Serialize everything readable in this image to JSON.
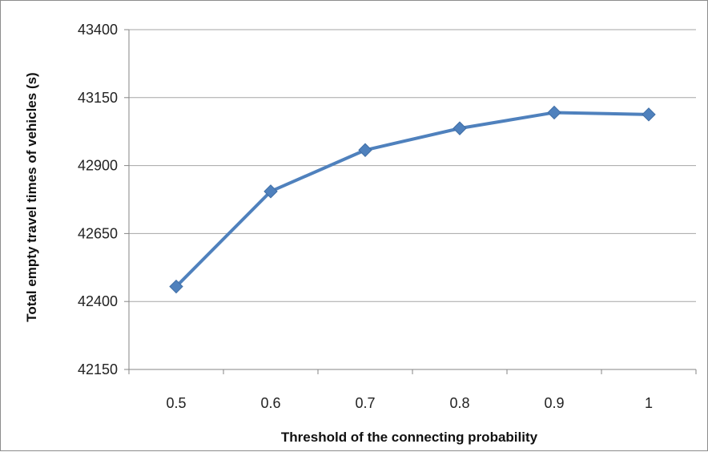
{
  "chart_data": {
    "type": "line",
    "title": "",
    "xlabel": "Threshold of the connecting probability",
    "ylabel": "Total empty travel times of vehicles (s)",
    "categories": [
      "0.5",
      "0.6",
      "0.7",
      "0.8",
      "0.9",
      "1"
    ],
    "x": [
      0.5,
      0.6,
      0.7,
      0.8,
      0.9,
      1
    ],
    "series": [
      {
        "name": "",
        "values": [
          42455,
          42805,
          42957,
          43037,
          43095,
          43088
        ],
        "color": "#4f81bd",
        "marker": "diamond"
      }
    ],
    "ylim": [
      42150,
      43400
    ],
    "yticks": [
      42150,
      42400,
      42650,
      42900,
      43150,
      43400
    ],
    "yticklabels": [
      "42150",
      "42400",
      "42650",
      "42900",
      "43150",
      "43400"
    ],
    "grid": "horizontal",
    "legend": "none"
  },
  "colors": {
    "series": "#4f81bd",
    "gridline": "#a6a6a6",
    "axis": "#868686",
    "frame": "#8c8c8c"
  }
}
